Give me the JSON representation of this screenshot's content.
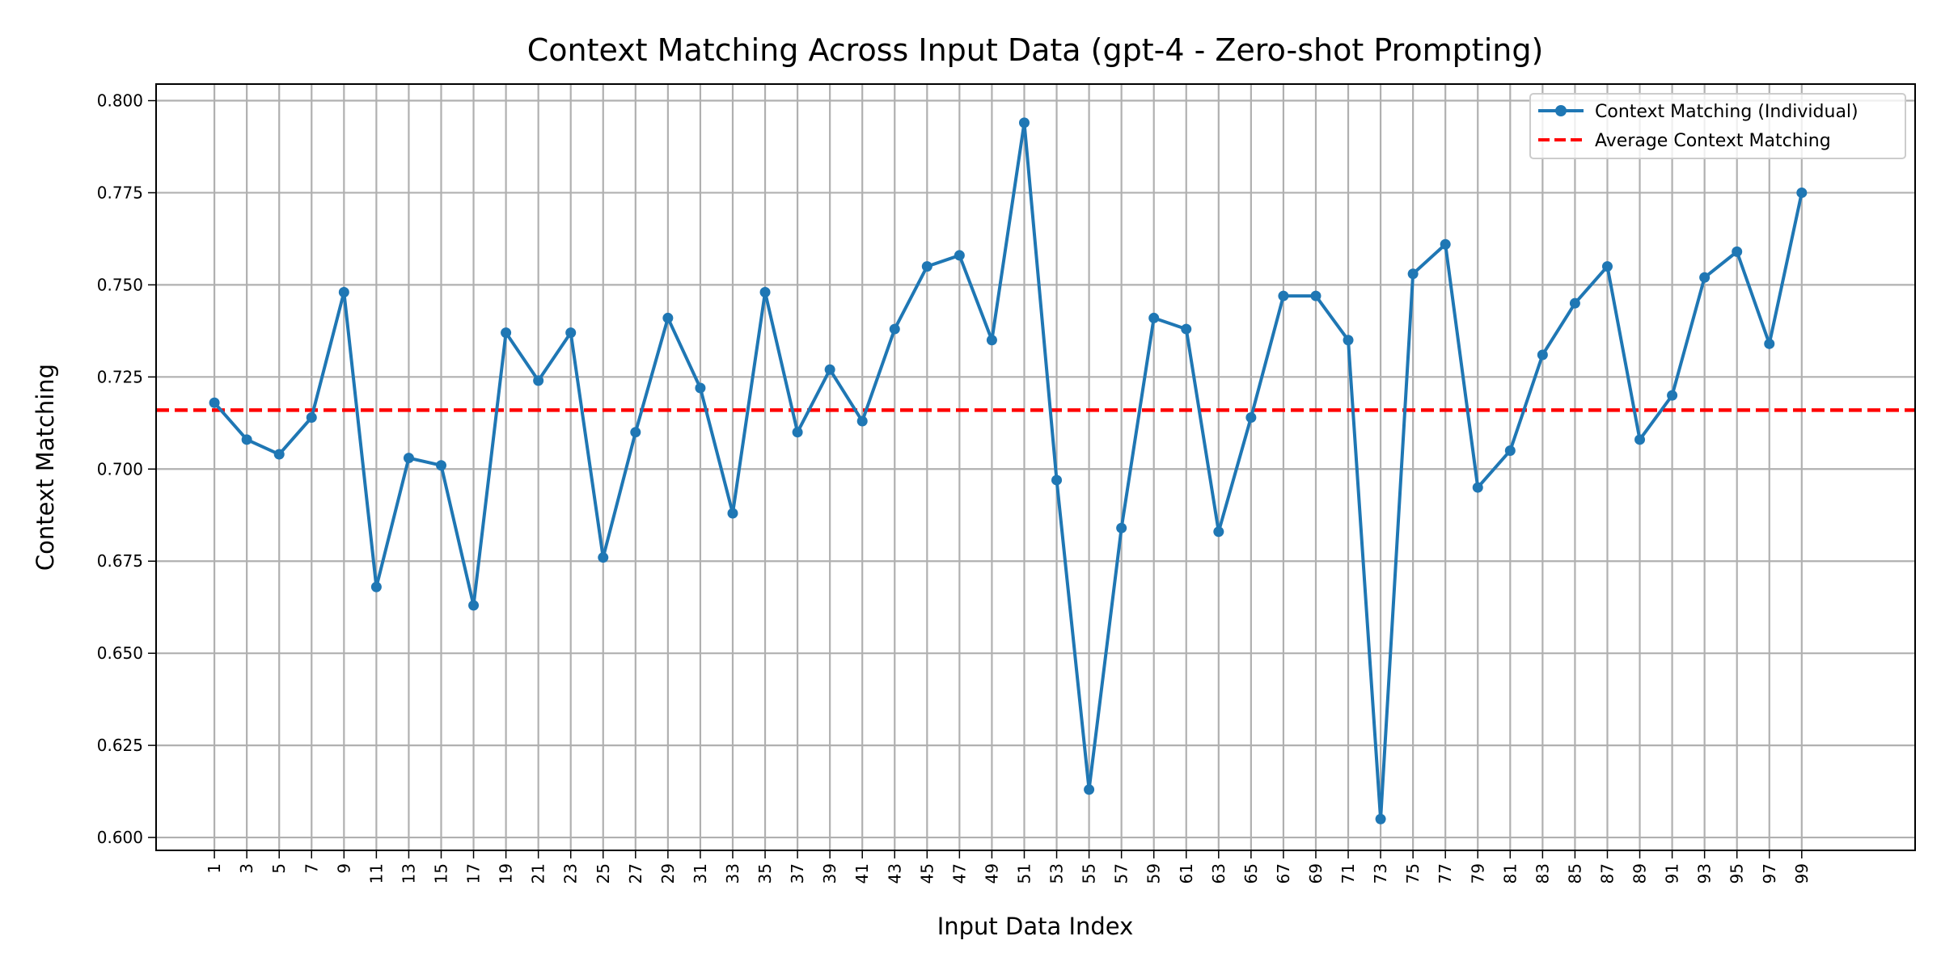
{
  "chart_data": {
    "type": "line",
    "title": "Context Matching Across Input Data (gpt-4 - Zero-shot Prompting)",
    "xlabel": "Input Data Index",
    "ylabel": "Context Matching",
    "xlim": [
      -2.6,
      106
    ],
    "ylim": [
      0.5965,
      0.8045
    ],
    "x_ticks": [
      1,
      3,
      5,
      7,
      9,
      11,
      13,
      15,
      17,
      19,
      21,
      23,
      25,
      27,
      29,
      31,
      33,
      35,
      37,
      39,
      41,
      43,
      45,
      47,
      49,
      51,
      53,
      55,
      57,
      59,
      61,
      63,
      65,
      67,
      69,
      71,
      73,
      75,
      77,
      79,
      81,
      83,
      85,
      87,
      89,
      91,
      93,
      95,
      97,
      99
    ],
    "x_tick_labels": [
      "1",
      "3",
      "5",
      "7",
      "9",
      "11",
      "13",
      "15",
      "17",
      "19",
      "21",
      "23",
      "25",
      "27",
      "29",
      "31",
      "33",
      "35",
      "37",
      "39",
      "41",
      "43",
      "45",
      "47",
      "49",
      "51",
      "53",
      "55",
      "57",
      "59",
      "61",
      "63",
      "65",
      "67",
      "69",
      "71",
      "73",
      "75",
      "77",
      "79",
      "81",
      "83",
      "85",
      "87",
      "89",
      "91",
      "93",
      "95",
      "97",
      "99"
    ],
    "y_ticks": [
      0.6,
      0.625,
      0.65,
      0.675,
      0.7,
      0.725,
      0.75,
      0.775,
      0.8
    ],
    "y_tick_labels": [
      "0.600",
      "0.625",
      "0.650",
      "0.675",
      "0.700",
      "0.725",
      "0.750",
      "0.775",
      "0.800"
    ],
    "grid": true,
    "legend_position": "top-right",
    "series": [
      {
        "name": "Context Matching (Individual)",
        "style": "line-marker",
        "color": "#1f77b4",
        "x": [
          1,
          3,
          5,
          7,
          9,
          11,
          13,
          15,
          17,
          19,
          21,
          23,
          25,
          27,
          29,
          31,
          33,
          35,
          37,
          39,
          41,
          43,
          45,
          47,
          49,
          51,
          53,
          55,
          57,
          59,
          61,
          63,
          65,
          67,
          69,
          71,
          73,
          75,
          77,
          79,
          81,
          83,
          85,
          87,
          89,
          91,
          93,
          95,
          97,
          99
        ],
        "values": [
          0.718,
          0.708,
          0.704,
          0.714,
          0.748,
          0.668,
          0.703,
          0.701,
          0.663,
          0.737,
          0.724,
          0.737,
          0.676,
          0.71,
          0.741,
          0.722,
          0.688,
          0.748,
          0.71,
          0.727,
          0.713,
          0.738,
          0.755,
          0.758,
          0.735,
          0.794,
          0.697,
          0.613,
          0.684,
          0.741,
          0.738,
          0.683,
          0.714,
          0.747,
          0.747,
          0.735,
          0.605,
          0.753,
          0.761,
          0.695,
          0.705,
          0.731,
          0.745,
          0.755,
          0.708,
          0.72,
          0.752,
          0.759,
          0.734,
          0.775
        ]
      },
      {
        "name": "Average Context Matching",
        "style": "dashed",
        "color": "#ff0000",
        "value": 0.716
      }
    ]
  }
}
